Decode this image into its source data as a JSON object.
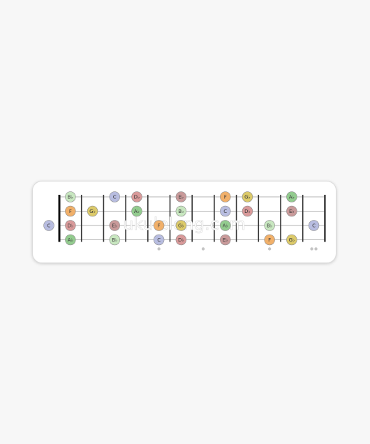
{
  "watermark": "ukuleleng.com",
  "palette": {
    "C": "#b8bde0",
    "Db": "#d99a9a",
    "D": "#c9e6b5",
    "Eb": "#c99a9a",
    "E": "#e8c3c3",
    "F": "#f1b06a",
    "Gb": "#dcca6a",
    "G": "#d5d5d5",
    "Ab": "#93cc8f",
    "A": "#9fcf9f",
    "Bb": "#c8e7c0",
    "B": "#d5d5d5"
  },
  "fretboard": {
    "frets": 12,
    "strings": 4,
    "open": [
      {
        "string": 2,
        "note": "C",
        "label": "C"
      }
    ],
    "notes": [
      {
        "fret": 1,
        "string": 0,
        "note": "Bb",
        "label": "B♭"
      },
      {
        "fret": 1,
        "string": 1,
        "note": "F",
        "label": "F"
      },
      {
        "fret": 1,
        "string": 2,
        "note": "Db",
        "label": "D♭"
      },
      {
        "fret": 1,
        "string": 3,
        "note": "Ab",
        "label": "A♭"
      },
      {
        "fret": 2,
        "string": 1,
        "note": "Gb",
        "label": "G♭"
      },
      {
        "fret": 3,
        "string": 0,
        "note": "C",
        "label": "C"
      },
      {
        "fret": 3,
        "string": 2,
        "note": "Eb",
        "label": "E♭"
      },
      {
        "fret": 3,
        "string": 3,
        "note": "Bb",
        "label": "B♭"
      },
      {
        "fret": 4,
        "string": 0,
        "note": "Db",
        "label": "D♭"
      },
      {
        "fret": 4,
        "string": 1,
        "note": "Ab",
        "label": "A♭"
      },
      {
        "fret": 5,
        "string": 2,
        "note": "F",
        "label": "F"
      },
      {
        "fret": 5,
        "string": 3,
        "note": "C",
        "label": "C"
      },
      {
        "fret": 6,
        "string": 0,
        "note": "Eb",
        "label": "E♭"
      },
      {
        "fret": 6,
        "string": 1,
        "note": "Bb",
        "label": "B♭"
      },
      {
        "fret": 6,
        "string": 2,
        "note": "Gb",
        "label": "G♭"
      },
      {
        "fret": 6,
        "string": 3,
        "note": "Db",
        "label": "D♭"
      },
      {
        "fret": 8,
        "string": 0,
        "note": "F",
        "label": "F"
      },
      {
        "fret": 8,
        "string": 1,
        "note": "C",
        "label": "C"
      },
      {
        "fret": 8,
        "string": 2,
        "note": "Ab",
        "label": "A♭"
      },
      {
        "fret": 8,
        "string": 3,
        "note": "Eb",
        "label": "E♭"
      },
      {
        "fret": 9,
        "string": 0,
        "note": "Gb",
        "label": "G♭"
      },
      {
        "fret": 9,
        "string": 1,
        "note": "Db",
        "label": "D♭"
      },
      {
        "fret": 10,
        "string": 2,
        "note": "Bb",
        "label": "B♭"
      },
      {
        "fret": 10,
        "string": 3,
        "note": "F",
        "label": "F"
      },
      {
        "fret": 11,
        "string": 0,
        "note": "Ab",
        "label": "A♭"
      },
      {
        "fret": 11,
        "string": 1,
        "note": "Eb",
        "label": "E♭"
      },
      {
        "fret": 11,
        "string": 3,
        "note": "Gb",
        "label": "G♭"
      },
      {
        "fret": 12,
        "string": 2,
        "note": "C",
        "label": "C"
      }
    ],
    "markers": [
      {
        "fret": 5,
        "dots": 1
      },
      {
        "fret": 7,
        "dots": 1
      },
      {
        "fret": 10,
        "dots": 1
      },
      {
        "fret": 12,
        "dots": 2
      }
    ]
  }
}
